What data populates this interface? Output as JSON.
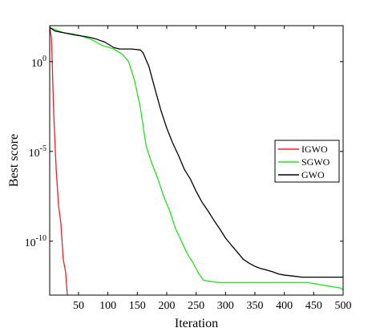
{
  "chart_data": {
    "type": "line",
    "title": "",
    "xlabel": "Iteration",
    "ylabel": "Best score",
    "xlim": [
      1,
      500
    ],
    "ylim": [
      1e-13,
      100
    ],
    "yscale": "log",
    "grid": false,
    "legend_position": "middle-right",
    "x_ticks": [
      50,
      100,
      150,
      200,
      250,
      300,
      350,
      400,
      450,
      500
    ],
    "x_tick_labels": [
      "50",
      "100",
      "150",
      "200",
      "250",
      "300",
      "350",
      "400",
      "450",
      "500"
    ],
    "y_ticks": [
      1,
      1e-05,
      1e-10
    ],
    "y_tick_labels": [
      {
        "base": "10",
        "exp": "0"
      },
      {
        "base": "10",
        "exp": "-5"
      },
      {
        "base": "10",
        "exp": "-10"
      }
    ],
    "series": [
      {
        "name": "IGWO",
        "color": "#e8202a",
        "x": [
          1,
          4,
          8,
          12,
          16,
          20,
          24,
          28,
          31
        ],
        "y": [
          90,
          20,
          0.001,
          1e-06,
          1e-08,
          1e-09,
          1e-11,
          2e-12,
          1e-13
        ]
      },
      {
        "name": "SGWO",
        "color": "#22e01e",
        "x": [
          1,
          10,
          25,
          40,
          50,
          70,
          90,
          110,
          125,
          135,
          145,
          155,
          165,
          175,
          185,
          195,
          205,
          215,
          225,
          235,
          245,
          255,
          262,
          270,
          290,
          320,
          360,
          400,
          440,
          480,
          495,
          500
        ],
        "y": [
          80,
          60,
          40,
          35,
          30,
          18,
          8,
          5,
          2.5,
          1,
          0.1,
          0.003,
          2e-05,
          2e-06,
          3e-07,
          3e-08,
          5e-09,
          5e-10,
          1e-10,
          2e-11,
          6e-12,
          1.5e-12,
          7e-13,
          6e-13,
          5e-13,
          5e-13,
          5e-13,
          5e-13,
          5e-13,
          3e-13,
          2.5e-13,
          2e-13
        ]
      },
      {
        "name": "GWO",
        "color": "#000000",
        "x": [
          1,
          10,
          25,
          45,
          60,
          70,
          80,
          95,
          110,
          120,
          140,
          155,
          160,
          170,
          180,
          190,
          200,
          210,
          220,
          230,
          240,
          250,
          260,
          270,
          280,
          290,
          300,
          310,
          320,
          330,
          340,
          350,
          360,
          370,
          380,
          390,
          400,
          410,
          420,
          430,
          440,
          460,
          480,
          500
        ],
        "y": [
          80,
          50,
          40,
          30,
          25,
          22,
          18,
          12,
          6,
          5,
          5,
          4.5,
          3,
          0.5,
          0.03,
          0.002,
          0.0002,
          3e-05,
          6e-06,
          1e-06,
          3e-07,
          6e-08,
          1.5e-08,
          5e-09,
          1.5e-09,
          5e-10,
          1.5e-10,
          6e-11,
          2.5e-11,
          1e-11,
          6e-12,
          4e-12,
          3e-12,
          2.5e-12,
          2e-12,
          1.5e-12,
          1.3e-12,
          1.2e-12,
          1.1e-12,
          1e-12,
          1e-12,
          1e-12,
          1e-12,
          1e-12
        ]
      }
    ]
  }
}
